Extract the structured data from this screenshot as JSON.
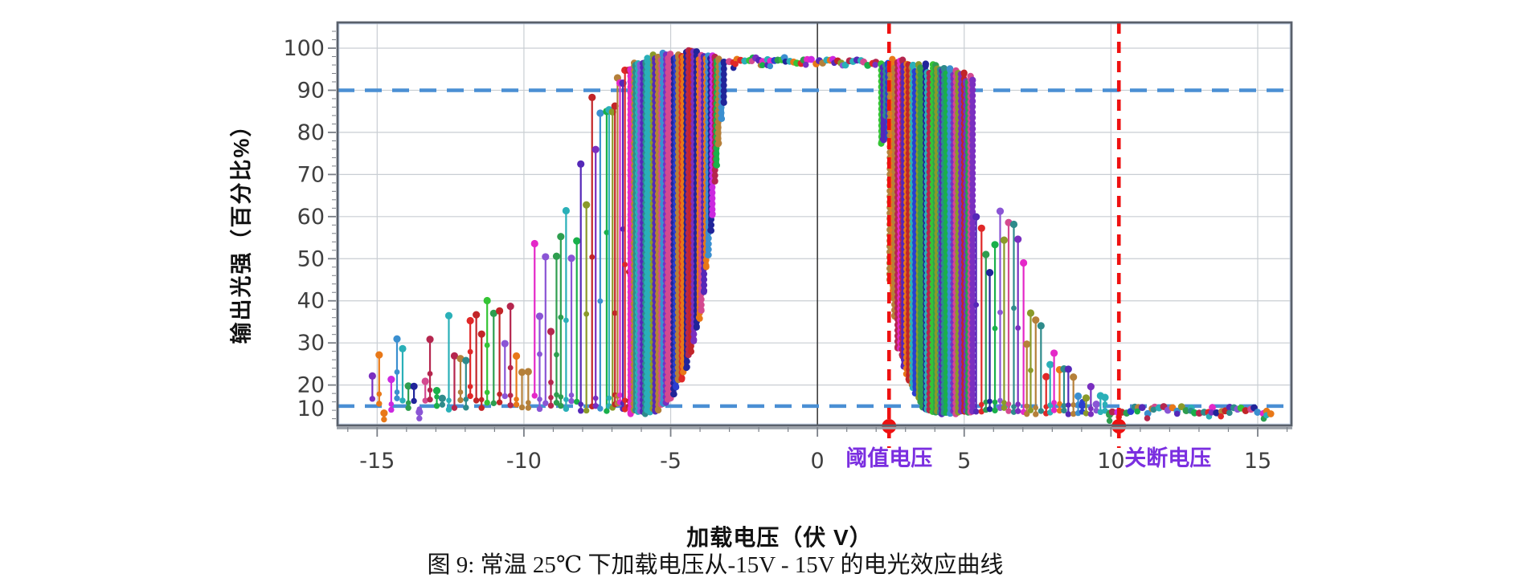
{
  "figure": {
    "caption": "图 9: 常温 25℃ 下加载电压从-15V - 15V 的电光效应曲线"
  },
  "chart_data": {
    "type": "stem-scatter",
    "title": "",
    "xlabel": "加载电压（伏 V）",
    "ylabel": "输出光强（百分比%）",
    "x_axis": {
      "min": -16.35,
      "max": 16.15,
      "major_ticks": [
        -15,
        -10,
        -5,
        0,
        5,
        10,
        15
      ],
      "minor_step": 1,
      "zero_line": true
    },
    "y_axis": {
      "min": 10.4,
      "max": 106.1,
      "major_ticks": [
        10,
        20,
        30,
        40,
        50,
        60,
        70,
        80,
        90,
        100
      ],
      "minor_step": 2
    },
    "grid": {
      "show": true,
      "color": "#c9ced3",
      "zero_line_color": "#3c3c3c"
    },
    "frame": {
      "border_color": "#59606b",
      "inner_tint": "#ccdaf0",
      "tick_color": "#7a7f87",
      "tick_label_color": "#3f3f3f"
    },
    "reference_lines": {
      "horizontal": [
        {
          "y": 90,
          "color": "#4a8fd4",
          "style": "dashed"
        },
        {
          "y": 15,
          "color": "#4a8fd4",
          "style": "dashed"
        }
      ],
      "vertical": [
        {
          "x": 2.44,
          "label": "阈值电压",
          "line_color": "#ee1111",
          "label_color": "#7b2fe0",
          "marker": "dot",
          "label_align": "center"
        },
        {
          "x": 10.27,
          "label": "关断电压",
          "line_color": "#ee1111",
          "label_color": "#7b2fe0",
          "marker": "dot",
          "label_align": "right"
        }
      ]
    },
    "palette": [
      "#b5264e",
      "#2e9e4f",
      "#7a2fc0",
      "#2b3fd0",
      "#e428c8",
      "#2ab0b8",
      "#e87818",
      "#35c435",
      "#20249a",
      "#8a55d5",
      "#c22528",
      "#3a8fd0",
      "#8a9a2a",
      "#b5803a",
      "#d44a90",
      "#19b04a",
      "#5528b8",
      "#e02828",
      "#2e8b8b",
      "#cc28e0"
    ],
    "series_envelope": [
      {
        "name": "noise-floor-left",
        "kind": "stems",
        "x_from": -15.15,
        "x_to": -8.95,
        "step": 0.2,
        "y_low": [
          14,
          17.5
        ],
        "top_profile": [
          [
            -15.15,
            23
          ],
          [
            -14,
            24
          ],
          [
            -13,
            25
          ],
          [
            -12,
            27
          ],
          [
            -11,
            31
          ],
          [
            -10,
            36
          ],
          [
            -9.4,
            41
          ],
          [
            -8.95,
            46
          ]
        ],
        "top_jitter": [
          0.55,
          1.45
        ]
      },
      {
        "name": "rise-left",
        "kind": "stems",
        "x_from": -8.9,
        "x_to": -7.3,
        "step": 0.16,
        "y_low": [
          13.8,
          16.5
        ],
        "top_profile": [
          [
            -8.9,
            50
          ],
          [
            -8.4,
            60
          ],
          [
            -7.9,
            72
          ],
          [
            -7.5,
            83
          ],
          [
            -7.3,
            88
          ]
        ],
        "top_jitter": [
          0.8,
          1.15
        ]
      },
      {
        "name": "tall-stems-left",
        "kind": "stems",
        "x_from": -7.2,
        "x_to": -6.4,
        "step": 0.1,
        "y_low": [
          13.5,
          16
        ],
        "top_profile": [
          [
            -7.2,
            89
          ],
          [
            -6.8,
            93
          ],
          [
            -6.4,
            96
          ]
        ],
        "top_jitter": [
          0.93,
          1.03
        ]
      },
      {
        "name": "dense-band-left",
        "kind": "columns",
        "x_from": -6.35,
        "x_to": -3.15,
        "step": 0.082,
        "bottom_profile": [
          [
            -6.35,
            13.5
          ],
          [
            -5.5,
            14
          ],
          [
            -5.0,
            17
          ],
          [
            -4.5,
            24
          ],
          [
            -4.0,
            36
          ],
          [
            -3.6,
            58
          ],
          [
            -3.35,
            78
          ],
          [
            -3.15,
            88
          ]
        ],
        "top_profile": [
          [
            -6.35,
            95.5
          ],
          [
            -5.5,
            98
          ],
          [
            -4.6,
            98.8
          ],
          [
            -3.9,
            98.4
          ],
          [
            -3.15,
            97
          ]
        ],
        "top_jitter": [
          0.988,
          1.008
        ]
      },
      {
        "name": "plateau-top",
        "kind": "dots",
        "x_from": -3.0,
        "x_to": 2.1,
        "step": 0.13,
        "top_profile": [
          [
            -3.0,
            96.6
          ],
          [
            -1.6,
            97.2
          ],
          [
            0,
            96.8
          ],
          [
            1.1,
            96.5
          ],
          [
            2.1,
            96.2
          ]
        ],
        "top_jitter": [
          0.994,
          1.008
        ]
      },
      {
        "name": "hanging-columns",
        "kind": "columns",
        "x_from": 2.16,
        "x_to": 2.44,
        "step": 0.09,
        "y_low": [
          76,
          85
        ],
        "top_profile": [
          [
            2.16,
            96.2
          ],
          [
            2.44,
            96.4
          ]
        ],
        "top_jitter": [
          0.99,
          1.01
        ]
      },
      {
        "name": "dense-band-right",
        "kind": "columns",
        "x_from": 2.48,
        "x_to": 5.35,
        "step": 0.082,
        "bottom_profile": [
          [
            2.48,
            46
          ],
          [
            2.7,
            30
          ],
          [
            3.1,
            21
          ],
          [
            3.6,
            15
          ],
          [
            3.9,
            13.5
          ],
          [
            5.35,
            13.5
          ]
        ],
        "top_profile": [
          [
            2.48,
            96.5
          ],
          [
            3.2,
            96
          ],
          [
            4.1,
            95
          ],
          [
            4.8,
            93.8
          ],
          [
            5.35,
            92
          ]
        ],
        "top_jitter": [
          0.985,
          1.012
        ]
      },
      {
        "name": "decay-right",
        "kind": "stems",
        "x_from": 5.42,
        "x_to": 9.95,
        "step": 0.155,
        "y_low": [
          13,
          14.6
        ],
        "top_profile": [
          [
            5.42,
            50
          ],
          [
            5.8,
            42
          ],
          [
            6.15,
            58
          ],
          [
            6.5,
            52
          ],
          [
            6.9,
            42
          ],
          [
            7.3,
            33
          ],
          [
            7.7,
            28
          ],
          [
            8.1,
            24
          ],
          [
            8.6,
            20.5
          ],
          [
            9.1,
            18
          ],
          [
            9.95,
            15.3
          ]
        ],
        "top_jitter": [
          0.78,
          1.28
        ]
      },
      {
        "name": "tail-right",
        "kind": "dots",
        "x_from": 10.05,
        "x_to": 15.5,
        "step": 0.145,
        "top_profile": [
          [
            10.05,
            13.8
          ],
          [
            13,
            14
          ],
          [
            15.5,
            13.7
          ]
        ],
        "top_jitter": [
          0.95,
          1.07
        ]
      }
    ]
  }
}
